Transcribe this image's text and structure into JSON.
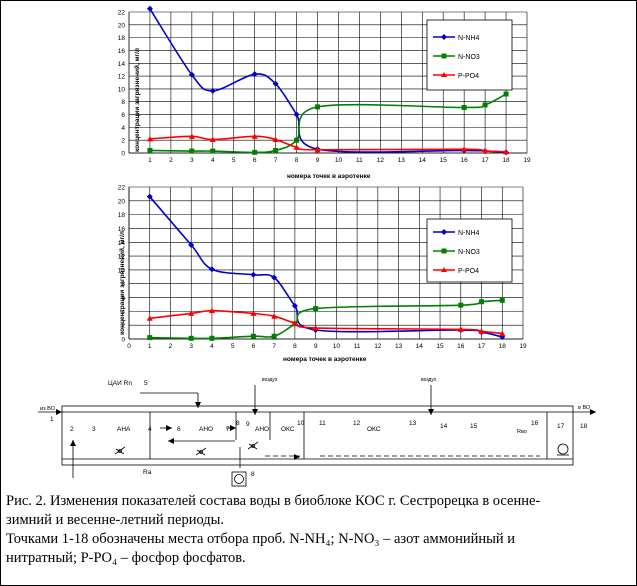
{
  "chart_data": [
    {
      "type": "line",
      "x": [
        1,
        3,
        4,
        6,
        7,
        8,
        9,
        16,
        17,
        18
      ],
      "xticks": [
        "1",
        "2",
        "3",
        "4",
        "5",
        "6",
        "7",
        "8",
        "9",
        "10",
        "11",
        "12",
        "13",
        "14",
        "15",
        "16",
        "17",
        "18",
        "19"
      ],
      "yticks": [
        "0",
        "2",
        "4",
        "6",
        "8",
        "10",
        "12",
        "14",
        "16",
        "18",
        "20",
        "22"
      ],
      "ylim": [
        0,
        22
      ],
      "ylabel": "концентрации загрязнений, мг/л",
      "xlabel": "номера точек в аэротенке",
      "legend": "right",
      "series": [
        {
          "name": "N-NH4",
          "color": "#0000cc",
          "marker": "diamond",
          "values": [
            22.5,
            12.2,
            9.7,
            12.3,
            10.8,
            6.0,
            0.6,
            0.4,
            0.3,
            0.1
          ]
        },
        {
          "name": "N-NO3",
          "color": "#008000",
          "marker": "square",
          "values": [
            0.4,
            0.3,
            0.3,
            0.1,
            0.4,
            2.0,
            7.2,
            7.1,
            7.5,
            9.2
          ]
        },
        {
          "name": "P-PO4",
          "color": "#ff0000",
          "marker": "triangle",
          "values": [
            2.2,
            2.6,
            2.1,
            2.6,
            2.1,
            0.9,
            0.5,
            0.6,
            0.3,
            0.2
          ]
        }
      ]
    },
    {
      "type": "line",
      "x": [
        1,
        3,
        4,
        6,
        7,
        8,
        9,
        16,
        17,
        18
      ],
      "xticks": [
        "0",
        "1",
        "2",
        "3",
        "4",
        "5",
        "6",
        "7",
        "8",
        "9",
        "10",
        "11",
        "12",
        "13",
        "14",
        "15",
        "16",
        "17",
        "18",
        "19"
      ],
      "yticks": [
        "0",
        "2",
        "4",
        "6",
        "8",
        "10",
        "12",
        "14",
        "16",
        "18",
        "20",
        "22"
      ],
      "ylim": [
        0,
        22
      ],
      "ylabel": "концентрации загрязнений, мг/л",
      "xlabel": "номера точек в аэротенке",
      "legend": "right",
      "series": [
        {
          "name": "N-NH4",
          "color": "#0000cc",
          "marker": "diamond",
          "values": [
            20.6,
            13.6,
            10.1,
            9.3,
            8.9,
            4.8,
            1.3,
            1.3,
            1.0,
            0.3
          ]
        },
        {
          "name": "N-NO3",
          "color": "#008000",
          "marker": "square",
          "values": [
            0.2,
            0.1,
            0.1,
            0.4,
            0.4,
            2.2,
            4.4,
            4.9,
            5.4,
            5.6
          ]
        },
        {
          "name": "P-PO4",
          "color": "#ff0000",
          "marker": "triangle",
          "values": [
            3.0,
            3.7,
            4.1,
            3.7,
            3.3,
            2.3,
            1.6,
            1.4,
            1.1,
            0.8
          ]
        }
      ]
    }
  ],
  "legend_labels_1": [
    "N-NH4",
    "N-NO3",
    "P-PO4"
  ],
  "legend_labels_2": [
    "N-NH4",
    "N-NO3",
    "P-PO4"
  ],
  "scheme": {
    "label_uai": "ЦАИ Rn",
    "label_5": "5",
    "label_vozduh_1": "воздух",
    "label_vozduh_2": "воздух",
    "label_iz_vo": "из ВО",
    "label_v_vo": "в ВО",
    "point_1": "1",
    "point_2": "2",
    "point_3": "3",
    "zone_ana": "АНА",
    "point_4": "4",
    "point_6": "6",
    "zone_ano_1": "АНО",
    "point_7": "7",
    "point_8a": "8",
    "point_9": "9",
    "zone_ano_2": "АНО",
    "zone_oks_1": "ОКС",
    "point_10": "10",
    "point_11": "11",
    "point_12": "12",
    "zone_oks_2": "ОКС",
    "point_13": "13",
    "point_14": "14",
    "point_15": "15",
    "point_16": "16",
    "label_rvo": "Rво",
    "point_17": "17",
    "point_18": "18",
    "label_ra": "Rа",
    "label_8": "8"
  },
  "caption": {
    "line1": "Рис. 2. Изменения показателей состава воды в биоблоке КОС г. Сестрорецка в осенне-",
    "line2": "зимний и весенне-летний периоды.",
    "line3": "Точками 1-18 обозначены места отбора проб. N-NH₄; N-NO₃ – азот аммонийный и",
    "line4": "нитратный; P-PO₄ – фосфор фосфатов."
  },
  "colors": {
    "nh4": "#0000cc",
    "no3": "#008000",
    "po4": "#ff0000"
  }
}
